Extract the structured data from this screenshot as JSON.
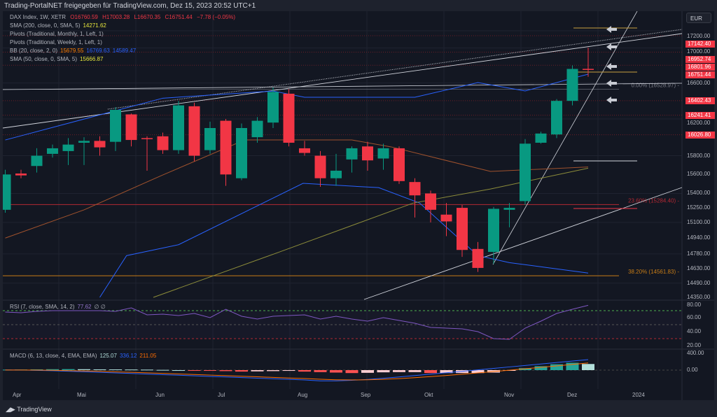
{
  "share_line": "Trading-PortalNET freigegeben für TradingView.com, Dez 15, 2023 20:52 UTC+1",
  "legend": {
    "symbol": "DAX Index, 1W, XETR",
    "o": "O16760.59",
    "h": "H17003.28",
    "l": "L16670.35",
    "c": "C16751.44",
    "chg": "−7.78 (−0.05%)",
    "sma200": "SMA (200, close, 0, SMA, 5)",
    "sma200_val": "14271.62",
    "pivm": "Pivots (Traditional, Monthly, 1, Left, 1)",
    "pivw": "Pivots (Traditional, Weekly, 1, Left, 1)",
    "bb": "BB (20, close, 2, 0)",
    "bb_mid": "15679.55",
    "bb_up": "16769.63",
    "bb_lo": "14589.47",
    "sma50": "SMA (50, close, 0, SMA, 5)",
    "sma50_val": "15666.87",
    "rsi": "RSI (7, close, SMA, 14, 2)",
    "rsi_val": "77.62",
    "rsi_x": "∅ ∅",
    "macd": "MACD (6, 13, close, 4, EMA, EMA)",
    "macd_h": "125.07",
    "macd_m": "336.12",
    "macd_s": "211.05"
  },
  "currency": "EUR",
  "price_axis": [
    "17200.00",
    "17000.00",
    "16600.00",
    "16200.00",
    "15800.00",
    "15600.00",
    "15400.00",
    "15250.00",
    "15100.00",
    "14940.00",
    "14780.00",
    "14630.00",
    "14490.00",
    "14350.00"
  ],
  "price_tags": [
    "17142.40",
    "16952.74",
    "16801.96",
    "16751.44",
    "16402.43",
    "16241.41",
    "16026.80"
  ],
  "fib": [
    {
      "label": "0.00% (16528.97)",
      "price": 16528.97,
      "color": "#787b86"
    },
    {
      "label": "23.60% (15284.40)",
      "price": 15284.4,
      "color": "#b22833"
    },
    {
      "label": "38.20% (14561.83)",
      "price": 14561.83,
      "color": "#c77c16"
    }
  ],
  "rsi_axis": [
    "80.00",
    "60.00",
    "40.00",
    "20.00"
  ],
  "macd_axis": [
    "400.00",
    "0.00"
  ],
  "time_axis": [
    "Apr",
    "Mai",
    "Jun",
    "Jul",
    "Aug",
    "Sep",
    "Okt",
    "Nov",
    "Dez",
    "2024"
  ],
  "brand": "TradingView",
  "colors": {
    "up": "#089981",
    "down": "#f23645",
    "bb": "#2962ff",
    "bbmid": "#a0522d",
    "sma50": "#8c8c3a"
  },
  "chart_data": {
    "type": "candlestick",
    "scale": "log",
    "ylim": [
      14350,
      17200
    ],
    "ohlc": [
      [
        15230,
        15650,
        15200,
        15600
      ],
      [
        15610,
        15650,
        15560,
        15590
      ],
      [
        15690,
        15880,
        15620,
        15800
      ],
      [
        15820,
        15920,
        15780,
        15880
      ],
      [
        15850,
        15990,
        15700,
        15920
      ],
      [
        15940,
        16000,
        15700,
        15960
      ],
      [
        15960,
        16010,
        15800,
        15890
      ],
      [
        15950,
        16330,
        15850,
        16300
      ],
      [
        16250,
        16260,
        15900,
        15970
      ],
      [
        15990,
        16010,
        15640,
        15980
      ],
      [
        16010,
        16050,
        15820,
        15860
      ],
      [
        15860,
        16400,
        15820,
        16350
      ],
      [
        16340,
        16380,
        15740,
        15800
      ],
      [
        15860,
        16170,
        15820,
        16100
      ],
      [
        16180,
        16200,
        15480,
        15600
      ],
      [
        15560,
        16150,
        15540,
        16100
      ],
      [
        16000,
        16220,
        15940,
        16180
      ],
      [
        16160,
        16550,
        16100,
        16500
      ],
      [
        16480,
        16530,
        15900,
        15940
      ],
      [
        15880,
        15960,
        15800,
        15830
      ],
      [
        15800,
        15850,
        15470,
        15560
      ],
      [
        15560,
        15820,
        15480,
        15640
      ],
      [
        15760,
        15900,
        15620,
        15880
      ],
      [
        15900,
        15950,
        15640,
        15750
      ],
      [
        15770,
        15930,
        15650,
        15880
      ],
      [
        15880,
        15900,
        15500,
        15530
      ],
      [
        15520,
        15560,
        15150,
        15380
      ],
      [
        15400,
        15430,
        15100,
        15230
      ],
      [
        15180,
        15300,
        14960,
        15110
      ],
      [
        15250,
        15280,
        14750,
        14820
      ],
      [
        14830,
        14900,
        14600,
        14640
      ],
      [
        14800,
        15260,
        14680,
        15240
      ],
      [
        15230,
        15300,
        15050,
        15250
      ],
      [
        15320,
        15980,
        15280,
        15930
      ],
      [
        15940,
        16060,
        15930,
        16040
      ],
      [
        16030,
        16420,
        15990,
        16400
      ],
      [
        16400,
        16800,
        16350,
        16760
      ],
      [
        16760.59,
        17003.28,
        16670.35,
        16751.44
      ]
    ],
    "bb_upper": [
      [
        0,
        15970
      ],
      [
        10,
        16430
      ],
      [
        17,
        16510
      ],
      [
        19,
        16440
      ],
      [
        26,
        16440
      ],
      [
        30,
        16605
      ],
      [
        33,
        16511
      ],
      [
        37,
        16700
      ]
    ],
    "bb_lower": [
      [
        6,
        14350
      ],
      [
        7.7,
        14763
      ],
      [
        11,
        14873
      ],
      [
        18.9,
        15506
      ],
      [
        23.7,
        15461
      ],
      [
        26.3,
        15300
      ],
      [
        30,
        14763
      ],
      [
        32,
        14693
      ],
      [
        37,
        14589
      ]
    ],
    "bb_mid": [
      [
        0,
        14940
      ],
      [
        5,
        15229
      ],
      [
        10,
        15595
      ],
      [
        15.2,
        15970
      ],
      [
        18.9,
        15970
      ],
      [
        22,
        15970
      ],
      [
        24.5,
        15895
      ],
      [
        30.8,
        15632
      ],
      [
        37,
        15680
      ]
    ],
    "sma50": [
      [
        9.4,
        14350
      ],
      [
        17.4,
        14799
      ],
      [
        25.9,
        15300
      ],
      [
        30.8,
        15447
      ],
      [
        37,
        15667
      ]
    ],
    "rsi": [
      68,
      67,
      69,
      70,
      70,
      70,
      70,
      69,
      74,
      64,
      65,
      63,
      66,
      60,
      72,
      62,
      58,
      62,
      63,
      64,
      58,
      62,
      58,
      55,
      60,
      56,
      52,
      46,
      45,
      44,
      40,
      30,
      29,
      45,
      55,
      66,
      72,
      77.62
    ],
    "macd_hist": [
      10,
      12,
      15,
      18,
      20,
      18,
      15,
      14,
      12,
      10,
      5,
      0,
      -5,
      -10,
      -20,
      -30,
      -25,
      -20,
      -15,
      -30,
      -40,
      -50,
      -60,
      -55,
      -45,
      -40,
      -40,
      -60,
      -60,
      -60,
      -60,
      -50,
      -5,
      40,
      80,
      120,
      150,
      125.07
    ],
    "pivots": [
      17142.4,
      16952.74,
      16801.96,
      16402.43,
      16241.41,
      16026.8
    ]
  }
}
